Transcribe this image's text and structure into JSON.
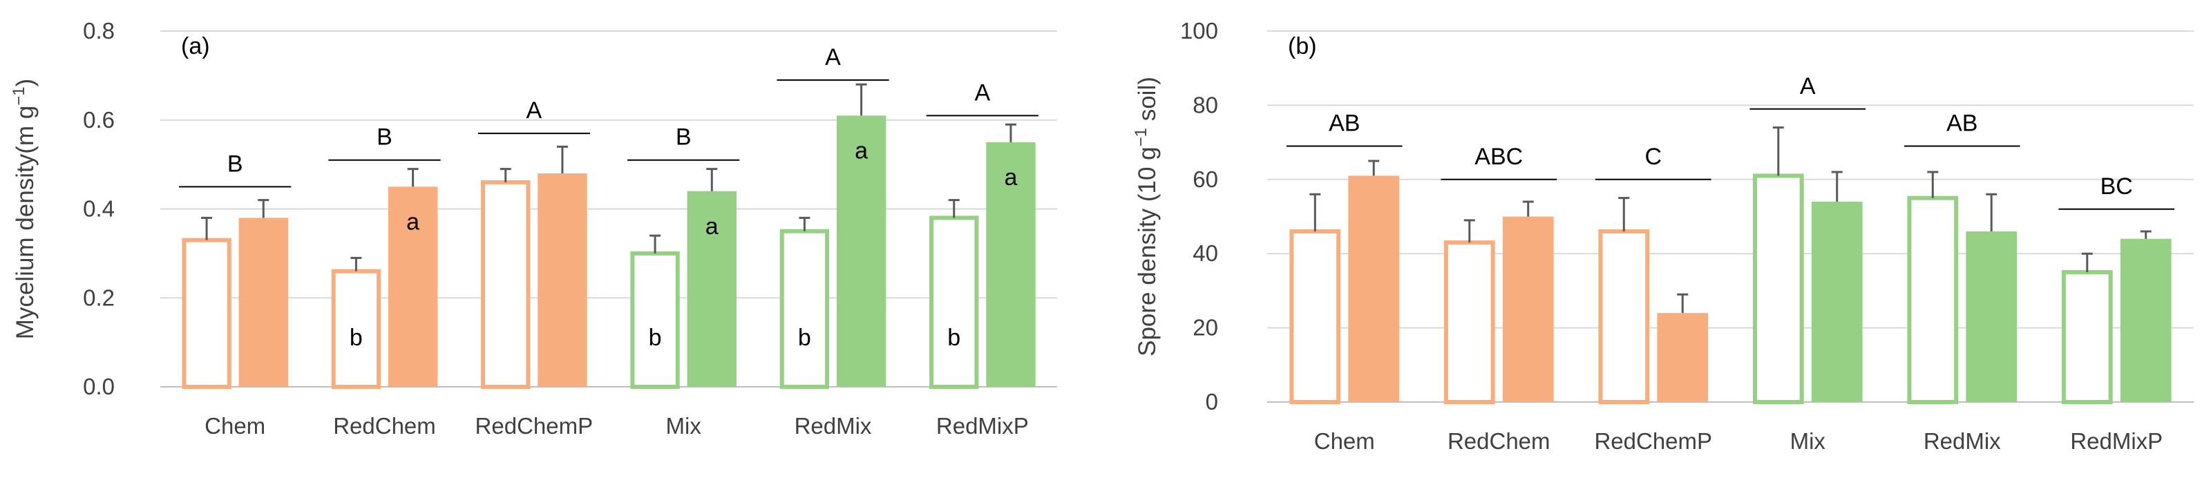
{
  "chart_data": [
    {
      "type": "bar",
      "panel_label": "(a)",
      "ylabel": "Mycelium density(m g",
      "ylabel_sup": "−1",
      "ylabel_tail": ")",
      "ylim": [
        0,
        0.8
      ],
      "yticks": [
        "0.0",
        "0.2",
        "0.4",
        "0.6",
        "0.8"
      ],
      "ytick_values": [
        0,
        0.2,
        0.4,
        0.6,
        0.8
      ],
      "categories": [
        "Chem",
        "RedChem",
        "RedChemP",
        "Mix",
        "RedMix",
        "RedMixP"
      ],
      "series": [
        {
          "name": "open",
          "values": [
            0.33,
            0.26,
            0.46,
            0.3,
            0.35,
            0.38
          ],
          "errors": [
            0.05,
            0.03,
            0.03,
            0.04,
            0.03,
            0.04
          ]
        },
        {
          "name": "filled",
          "values": [
            0.38,
            0.45,
            0.48,
            0.44,
            0.61,
            0.55
          ],
          "errors": [
            0.04,
            0.04,
            0.06,
            0.05,
            0.07,
            0.04
          ]
        }
      ],
      "group_letters": [
        "B",
        "B",
        "A",
        "B",
        "A",
        "A"
      ],
      "group_line_y": [
        0.45,
        0.51,
        0.57,
        0.51,
        0.69,
        0.61
      ],
      "bar_letters_open": [
        "",
        "b",
        "",
        "b",
        "b",
        "b"
      ],
      "bar_letters_filled": [
        "",
        "a",
        "",
        "a",
        "a",
        "a"
      ],
      "colors": {
        "chem": "#F8AD7F",
        "mix": "#95D084"
      }
    },
    {
      "type": "bar",
      "panel_label": "(b)",
      "ylabel": "Spore density (10 g",
      "ylabel_sup": "−1",
      "ylabel_tail": " soil)",
      "ylim": [
        0,
        100
      ],
      "yticks": [
        "0",
        "20",
        "40",
        "60",
        "80",
        "100"
      ],
      "ytick_values": [
        0,
        20,
        40,
        60,
        80,
        100
      ],
      "categories": [
        "Chem",
        "RedChem",
        "RedChemP",
        "Mix",
        "RedMix",
        "RedMixP"
      ],
      "series": [
        {
          "name": "open",
          "values": [
            46,
            43,
            46,
            61,
            55,
            35
          ],
          "errors": [
            10,
            6,
            9,
            13,
            7,
            5
          ]
        },
        {
          "name": "filled",
          "values": [
            61,
            50,
            24,
            54,
            46,
            44
          ],
          "errors": [
            4,
            4,
            5,
            8,
            10,
            2
          ]
        }
      ],
      "group_letters": [
        "AB",
        "ABC",
        "C",
        "A",
        "AB",
        "BC"
      ],
      "group_line_y": [
        69,
        60,
        60,
        79,
        69,
        52
      ],
      "bar_letters_open": [
        "",
        "",
        "",
        "",
        "",
        ""
      ],
      "bar_letters_filled": [
        "",
        "",
        "",
        "",
        "",
        ""
      ],
      "colors": {
        "chem": "#F8AD7F",
        "mix": "#95D084"
      }
    }
  ]
}
